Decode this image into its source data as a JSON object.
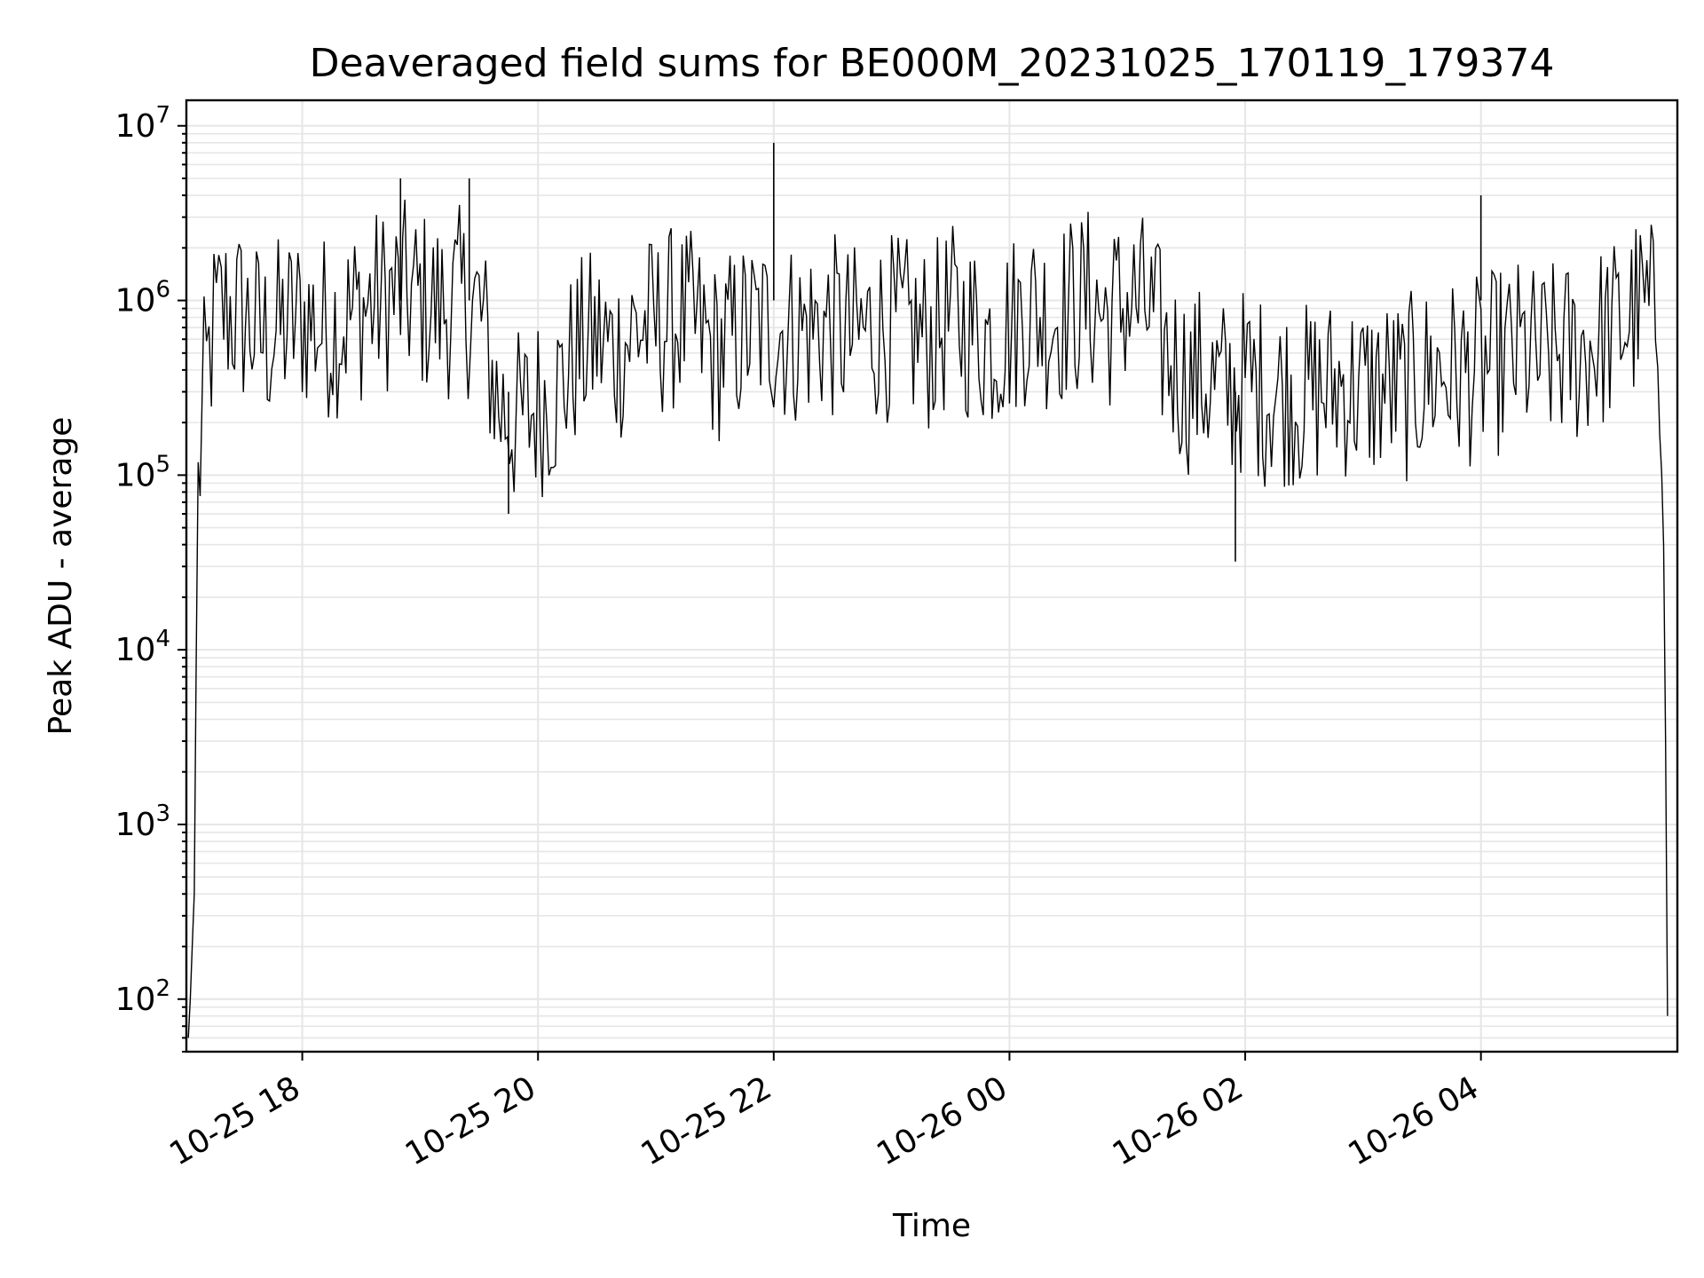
{
  "chart_data": {
    "type": "line",
    "title": "Deaveraged field sums for BE000M_20231025_170119_179374",
    "xlabel": "Time",
    "ylabel": "Peak ADU - average",
    "y_scale": "log",
    "ylim": [
      50,
      14000000
    ],
    "xlim": [
      "2023-10-25 17:01",
      "2023-10-26 05:40"
    ],
    "grid": true,
    "line_color": "#000000",
    "grid_color": "#e6e6e6",
    "x_ticks": [
      {
        "value": "2023-10-25 18:00",
        "label": "10-25 18"
      },
      {
        "value": "2023-10-25 20:00",
        "label": "10-25 20"
      },
      {
        "value": "2023-10-25 22:00",
        "label": "10-25 22"
      },
      {
        "value": "2023-10-26 00:00",
        "label": "10-26 00"
      },
      {
        "value": "2023-10-26 02:00",
        "label": "10-26 02"
      },
      {
        "value": "2023-10-26 04:00",
        "label": "10-26 04"
      }
    ],
    "y_ticks": [
      {
        "value": 100,
        "base": "10",
        "exp": "2"
      },
      {
        "value": 1000,
        "base": "10",
        "exp": "3"
      },
      {
        "value": 10000,
        "base": "10",
        "exp": "4"
      },
      {
        "value": 100000,
        "base": "10",
        "exp": "5"
      },
      {
        "value": 1000000,
        "base": "10",
        "exp": "6"
      },
      {
        "value": 10000000,
        "base": "10",
        "exp": "7"
      }
    ],
    "series": [
      {
        "x": [
          "2023-10-25 17:02",
          "2023-10-25 17:03",
          "2023-10-25 17:05",
          "2023-10-25 17:06",
          "2023-10-25 17:07",
          "2023-10-25 17:10",
          "2023-10-25 17:15",
          "2023-10-25 17:20",
          "2023-10-25 17:30",
          "2023-10-25 17:40",
          "2023-10-25 17:50",
          "2023-10-25 18:00",
          "2023-10-25 18:10",
          "2023-10-25 18:20",
          "2023-10-25 18:30",
          "2023-10-25 18:40",
          "2023-10-25 18:50",
          "2023-10-25 19:00",
          "2023-10-25 19:10",
          "2023-10-25 19:20",
          "2023-10-25 19:30",
          "2023-10-25 19:40",
          "2023-10-25 19:50",
          "2023-10-25 20:00",
          "2023-10-25 20:10",
          "2023-10-25 20:20",
          "2023-10-25 20:30",
          "2023-10-25 20:40",
          "2023-10-25 20:50",
          "2023-10-25 21:00",
          "2023-10-25 21:10",
          "2023-10-25 21:20",
          "2023-10-25 21:30",
          "2023-10-25 21:40",
          "2023-10-25 21:50",
          "2023-10-25 22:00",
          "2023-10-25 22:10",
          "2023-10-25 22:20",
          "2023-10-25 22:30",
          "2023-10-25 22:40",
          "2023-10-25 22:50",
          "2023-10-25 23:00",
          "2023-10-25 23:10",
          "2023-10-25 23:20",
          "2023-10-25 23:30",
          "2023-10-25 23:40",
          "2023-10-25 23:50",
          "2023-10-26 00:00",
          "2023-10-26 00:10",
          "2023-10-26 00:20",
          "2023-10-26 00:30",
          "2023-10-26 00:40",
          "2023-10-26 00:50",
          "2023-10-26 01:00",
          "2023-10-26 01:10",
          "2023-10-26 01:20",
          "2023-10-26 01:30",
          "2023-10-26 01:40",
          "2023-10-26 01:50",
          "2023-10-26 02:00",
          "2023-10-26 02:10",
          "2023-10-26 02:20",
          "2023-10-26 02:30",
          "2023-10-26 02:40",
          "2023-10-26 02:50",
          "2023-10-26 03:00",
          "2023-10-26 03:10",
          "2023-10-26 03:20",
          "2023-10-26 03:30",
          "2023-10-26 03:40",
          "2023-10-26 03:50",
          "2023-10-26 04:00",
          "2023-10-26 04:10",
          "2023-10-26 04:20",
          "2023-10-26 04:30",
          "2023-10-26 04:40",
          "2023-10-26 04:50",
          "2023-10-26 05:00",
          "2023-10-26 05:10",
          "2023-10-26 05:20",
          "2023-10-26 05:30",
          "2023-10-26 05:32",
          "2023-10-26 05:33",
          "2023-10-26 05:34",
          "2023-10-26 05:35"
        ],
        "y": [
          60,
          100,
          400,
          9000,
          80000,
          300000,
          700000,
          900000,
          800000,
          600000,
          700000,
          800000,
          700000,
          750000,
          900000,
          1000000,
          1100000,
          1000000,
          900000,
          1000000,
          900000,
          250000,
          200000,
          250000,
          300000,
          500000,
          600000,
          500000,
          700000,
          700000,
          800000,
          700000,
          500000,
          600000,
          700000,
          700000,
          650000,
          700000,
          700000,
          600000,
          700000,
          700000,
          650000,
          600000,
          800000,
          700000,
          600000,
          700000,
          900000,
          800000,
          900000,
          1000000,
          800000,
          1000000,
          900000,
          500000,
          350000,
          350000,
          300000,
          350000,
          300000,
          300000,
          280000,
          300000,
          330000,
          300000,
          320000,
          300000,
          350000,
          400000,
          380000,
          400000,
          450000,
          500000,
          450000,
          500000,
          500000,
          600000,
          700000,
          900000,
          800000,
          300000,
          100000,
          3000,
          80
        ]
      }
    ],
    "spikes": [
      {
        "x": "2023-10-25 18:50",
        "y": 5000000
      },
      {
        "x": "2023-10-25 19:25",
        "y": 5000000
      },
      {
        "x": "2023-10-25 22:00",
        "y": 8000000
      },
      {
        "x": "2023-10-26 04:00",
        "y": 4000000
      },
      {
        "x": "2023-10-25 19:45",
        "y": 60000
      },
      {
        "x": "2023-10-26 01:55",
        "y": 32000
      }
    ]
  }
}
